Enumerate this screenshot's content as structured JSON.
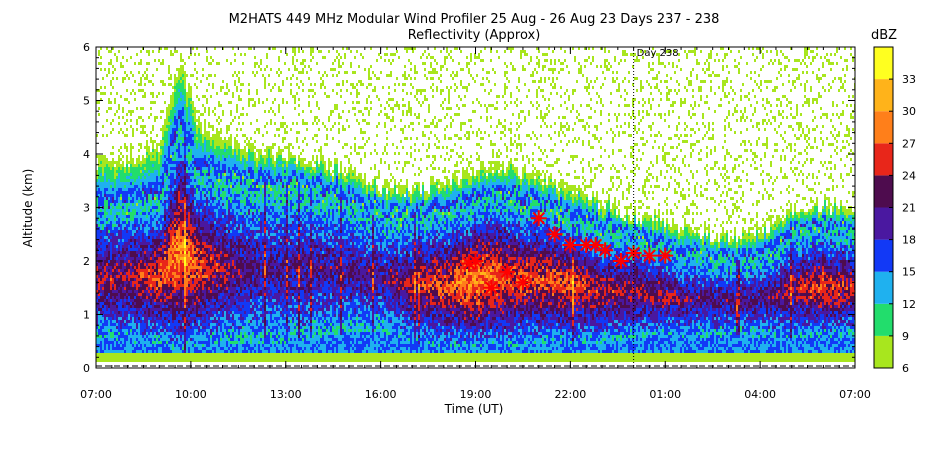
{
  "chart_data": {
    "type": "heatmap",
    "title": "M2HATS 449 MHz Modular Wind Profiler  25 Aug - 26 Aug 23 Days 237 - 238",
    "subtitle": "Reflectivity (Approx)",
    "xlabel": "Time (UT)",
    "ylabel": "Altitude (km)",
    "x_ticks": [
      "07:00",
      "10:00",
      "13:00",
      "16:00",
      "19:00",
      "22:00",
      "01:00",
      "04:00",
      "07:00"
    ],
    "x_range_hours": [
      7,
      31
    ],
    "y_ticks": [
      0,
      1,
      2,
      3,
      4,
      5,
      6
    ],
    "ylim": [
      0,
      6
    ],
    "day_marker": {
      "label": "Day 238",
      "x_hours": 24
    },
    "colorbar": {
      "label": "dBZ",
      "tick_labels": [
        "6",
        "9",
        "12",
        "15",
        "18",
        "21",
        "24",
        "27",
        "30",
        "33"
      ],
      "min": 6,
      "max": 36,
      "step": 3,
      "colors": [
        "#a8e61e",
        "#22dd6c",
        "#1fb1ef",
        "#1239f6",
        "#4a18a0",
        "#4e0c4e",
        "#e8261a",
        "#ff7f1a",
        "#ffb31a",
        "#ffff20"
      ]
    },
    "markers": {
      "symbol": "asterisk",
      "color": "#ff0000",
      "points": [
        {
          "x": 18.8,
          "y": 1.95
        },
        {
          "x": 19.0,
          "y": 2.0
        },
        {
          "x": 19.5,
          "y": 1.5
        },
        {
          "x": 20.0,
          "y": 1.8
        },
        {
          "x": 20.5,
          "y": 1.6
        },
        {
          "x": 21.0,
          "y": 2.8
        },
        {
          "x": 21.5,
          "y": 2.5
        },
        {
          "x": 22.0,
          "y": 2.3
        },
        {
          "x": 22.5,
          "y": 2.3
        },
        {
          "x": 22.8,
          "y": 2.3
        },
        {
          "x": 23.1,
          "y": 2.2
        },
        {
          "x": 23.6,
          "y": 2.0
        },
        {
          "x": 24.0,
          "y": 2.15
        },
        {
          "x": 24.5,
          "y": 2.1
        },
        {
          "x": 25.0,
          "y": 2.1
        }
      ]
    },
    "echo_profile": [
      {
        "x": 7.0,
        "top": 3.9,
        "core_top": 3.1,
        "core_bot": 0.6,
        "peak": 24
      },
      {
        "x": 8.0,
        "top": 3.9,
        "core_top": 3.2,
        "core_bot": 0.5,
        "peak": 24
      },
      {
        "x": 9.0,
        "top": 4.2,
        "core_top": 3.3,
        "core_bot": 0.5,
        "peak": 27
      },
      {
        "x": 9.6,
        "top": 5.8,
        "core_top": 4.6,
        "core_bot": 0.3,
        "peak": 30
      },
      {
        "x": 10.2,
        "top": 4.6,
        "core_top": 3.8,
        "core_bot": 0.4,
        "peak": 27
      },
      {
        "x": 11.0,
        "top": 4.3,
        "core_top": 3.6,
        "core_bot": 0.5,
        "peak": 24
      },
      {
        "x": 12.0,
        "top": 4.1,
        "core_top": 3.5,
        "core_bot": 0.5,
        "peak": 21
      },
      {
        "x": 13.0,
        "top": 4.0,
        "core_top": 3.5,
        "core_bot": 0.5,
        "peak": 21
      },
      {
        "x": 14.0,
        "top": 3.9,
        "core_top": 3.4,
        "core_bot": 0.6,
        "peak": 21
      },
      {
        "x": 15.0,
        "top": 3.7,
        "core_top": 3.2,
        "core_bot": 0.7,
        "peak": 21
      },
      {
        "x": 16.0,
        "top": 3.4,
        "core_top": 3.0,
        "core_bot": 0.7,
        "peak": 21
      },
      {
        "x": 17.0,
        "top": 3.4,
        "core_top": 2.9,
        "core_bot": 0.5,
        "peak": 24
      },
      {
        "x": 18.0,
        "top": 3.5,
        "core_top": 3.0,
        "core_bot": 0.4,
        "peak": 27
      },
      {
        "x": 19.0,
        "top": 3.7,
        "core_top": 3.2,
        "core_bot": 0.4,
        "peak": 30
      },
      {
        "x": 20.0,
        "top": 3.8,
        "core_top": 3.3,
        "core_bot": 0.4,
        "peak": 27
      },
      {
        "x": 21.0,
        "top": 3.6,
        "core_top": 3.1,
        "core_bot": 0.5,
        "peak": 27
      },
      {
        "x": 22.0,
        "top": 3.4,
        "core_top": 2.9,
        "core_bot": 0.5,
        "peak": 27
      },
      {
        "x": 23.0,
        "top": 3.1,
        "core_top": 2.7,
        "core_bot": 0.5,
        "peak": 24
      },
      {
        "x": 24.0,
        "top": 2.9,
        "core_top": 2.5,
        "core_bot": 0.6,
        "peak": 24
      },
      {
        "x": 25.0,
        "top": 2.8,
        "core_top": 2.3,
        "core_bot": 0.6,
        "peak": 24
      },
      {
        "x": 26.0,
        "top": 2.6,
        "core_top": 2.2,
        "core_bot": 0.6,
        "peak": 21
      },
      {
        "x": 27.0,
        "top": 2.5,
        "core_top": 2.1,
        "core_bot": 0.6,
        "peak": 21
      },
      {
        "x": 28.0,
        "top": 2.6,
        "core_top": 2.2,
        "core_bot": 0.6,
        "peak": 21
      },
      {
        "x": 29.0,
        "top": 3.0,
        "core_top": 2.6,
        "core_bot": 0.6,
        "peak": 24
      },
      {
        "x": 30.0,
        "top": 3.1,
        "core_top": 2.7,
        "core_bot": 0.6,
        "peak": 27
      },
      {
        "x": 31.0,
        "top": 3.0,
        "core_top": 2.6,
        "core_bot": 0.6,
        "peak": 24
      }
    ]
  }
}
